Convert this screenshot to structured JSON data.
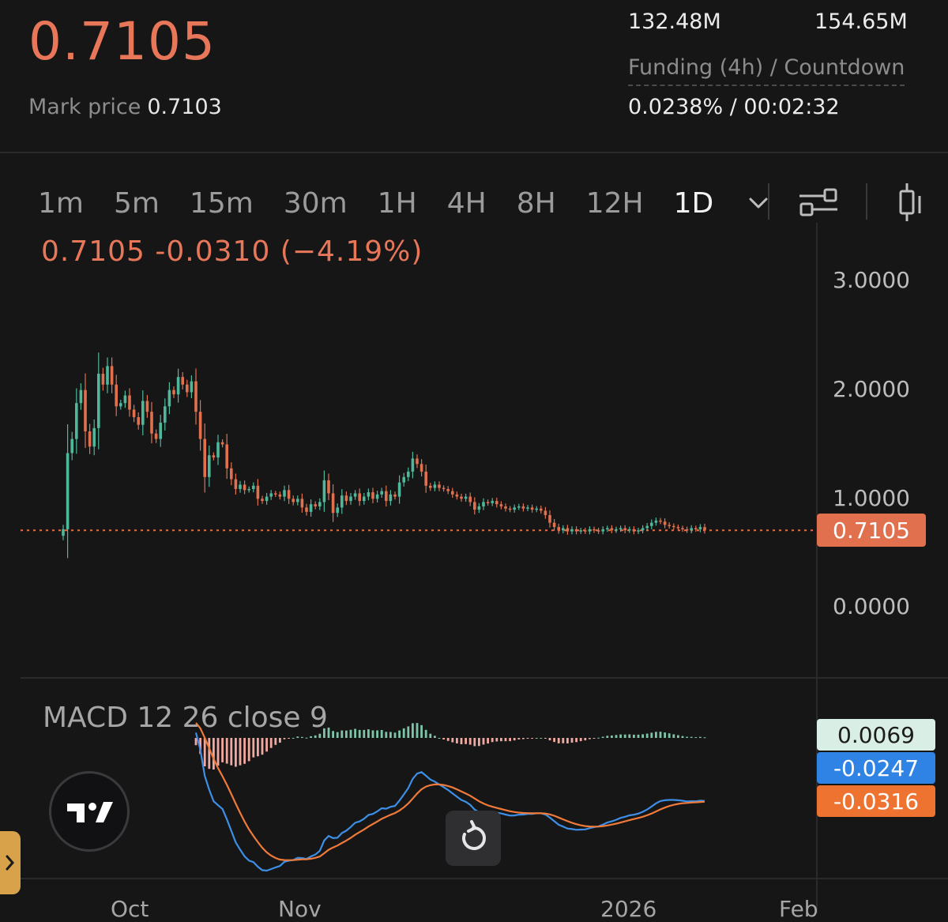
{
  "header": {
    "last_price": "0.7105",
    "mark_price_label": "Mark price",
    "mark_price": "0.7103",
    "stat_1": "132.48M",
    "stat_2": "154.65M",
    "funding_label": "Funding (4h) / Countdown",
    "funding_value": "0.0238%  /  00:02:32"
  },
  "timeframes": [
    "1m",
    "5m",
    "15m",
    "30m",
    "1H",
    "4H",
    "8H",
    "12H",
    "1D"
  ],
  "active_timeframe": "1D",
  "toolbar": {
    "icons": [
      "chevron-down-icon",
      "indicator-settings-icon",
      "candle-type-icon"
    ]
  },
  "chart": {
    "ohlc_text": "0.7105  -0.0310 (−4.19%)",
    "y_ticks": [
      "3.0000",
      "2.0000",
      "1.0000",
      "0.0000"
    ],
    "price_tag": "0.7105",
    "x_ticks": [
      "Oct",
      "Nov",
      "2026",
      "Feb"
    ]
  },
  "macd": {
    "label": "MACD 12 26 close 9",
    "histogram_value": "0.0069",
    "macd_value": "-0.0247",
    "signal_value": "-0.0316"
  },
  "colors": {
    "up": "#4fb89a",
    "down": "#e0704e",
    "macd_line": "#3d8fe6",
    "signal_line": "#ef7a3a",
    "hist_pos": "#7fc4a6",
    "hist_neg": "#f0a9a0"
  },
  "chart_data": {
    "type": "candlestick",
    "interval": "1D",
    "ylim": [
      0,
      3
    ],
    "last_price": 0.7105,
    "close": [
      0.72,
      1.42,
      1.55,
      1.88,
      2.0,
      1.62,
      1.48,
      1.65,
      2.15,
      2.05,
      2.22,
      2.05,
      1.85,
      1.88,
      1.95,
      1.82,
      1.75,
      1.68,
      1.9,
      1.8,
      1.6,
      1.55,
      1.7,
      1.85,
      2.0,
      1.96,
      2.12,
      2.05,
      1.98,
      2.08,
      1.8,
      1.55,
      1.2,
      1.4,
      1.38,
      1.52,
      1.5,
      1.28,
      1.18,
      1.09,
      1.13,
      1.08,
      1.09,
      1.12,
      1.0,
      0.98,
      1.02,
      1.05,
      1.04,
      1.02,
      1.08,
      1.0,
      0.97,
      1.0,
      0.92,
      0.88,
      0.95,
      0.93,
      0.97,
      1.17,
      1.05,
      0.87,
      0.92,
      1.03,
      0.98,
      1.02,
      1.05,
      0.98,
      1.02,
      1.06,
      1.0,
      1.04,
      1.07,
      0.98,
      1.04,
      1.02,
      1.15,
      1.2,
      1.25,
      1.37,
      1.32,
      1.25,
      1.12,
      1.1,
      1.13,
      1.1,
      1.09,
      1.07,
      1.04,
      1.02,
      1.0,
      1.02,
      0.97,
      0.9,
      0.93,
      0.97,
      0.96,
      0.98,
      0.95,
      0.93,
      0.91,
      0.9,
      0.92,
      0.93,
      0.91,
      0.92,
      0.9,
      0.91,
      0.89,
      0.85,
      0.78,
      0.74,
      0.71,
      0.73,
      0.7,
      0.72,
      0.7,
      0.71,
      0.7,
      0.72,
      0.71,
      0.7,
      0.72,
      0.73,
      0.71,
      0.72,
      0.73,
      0.71,
      0.72,
      0.7,
      0.71,
      0.73,
      0.75,
      0.78,
      0.8,
      0.79,
      0.76,
      0.75,
      0.74,
      0.73,
      0.72,
      0.71,
      0.73,
      0.72,
      0.74,
      0.7105
    ]
  }
}
